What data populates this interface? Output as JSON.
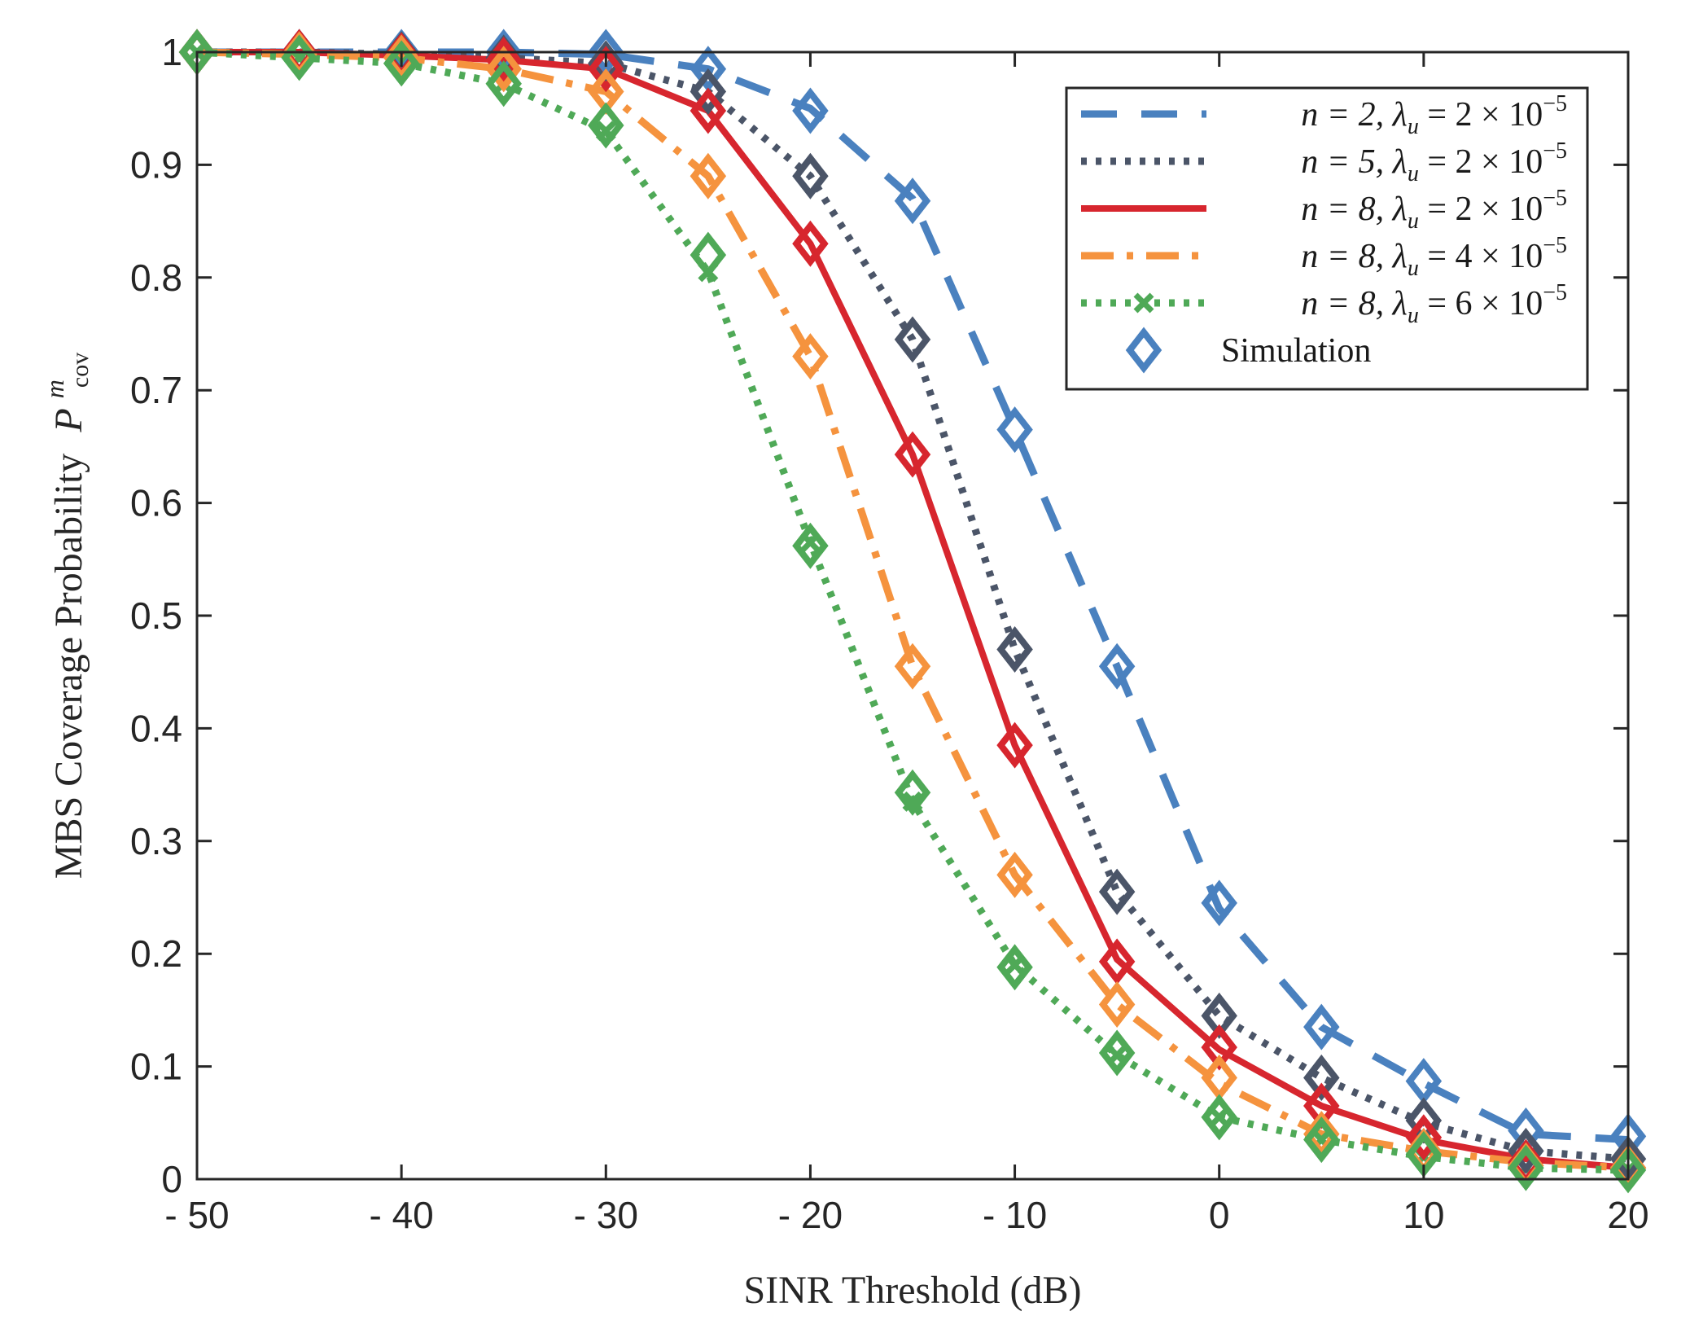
{
  "chart_data": {
    "type": "line",
    "xlabel": "SINR Threshold (dB)",
    "ylabel_text": "MBS Coverage Probability",
    "ylabel_symbol": "P",
    "ylabel_sup": "m",
    "ylabel_sub": "cov",
    "xlim": [
      -50,
      20
    ],
    "ylim": [
      0,
      1
    ],
    "xticks": [
      -50,
      -40,
      -30,
      -20,
      -10,
      0,
      10,
      20
    ],
    "xtick_labels": [
      "- 50",
      "- 40",
      "- 30",
      "- 20",
      "- 10",
      "0",
      "10",
      "20"
    ],
    "yticks": [
      0,
      0.1,
      0.2,
      0.3,
      0.4,
      0.5,
      0.6,
      0.7,
      0.8,
      0.9,
      1
    ],
    "ytick_labels": [
      "0",
      "0.1",
      "0.2",
      "0.3",
      "0.4",
      "0.5",
      "0.6",
      "0.7",
      "0.8",
      "0.9",
      "1"
    ],
    "legend_position": "top-right",
    "x": [
      -50,
      -45,
      -40,
      -35,
      -30,
      -25,
      -20,
      -15,
      -10,
      -5,
      0,
      5,
      10,
      15,
      20
    ],
    "series": [
      {
        "name": "n = 2, λ_u = 2 × 10^-5",
        "legend_prefix": "n = 2, λ",
        "legend_sub": "u",
        "legend_mid": " = 2 × 10",
        "legend_sup": "−5",
        "color": "#4a81bf",
        "style": "dashed",
        "values": [
          1.0,
          1.0,
          1.0,
          1.0,
          0.998,
          0.985,
          0.95,
          0.87,
          0.665,
          0.455,
          0.24,
          0.135,
          0.085,
          0.04,
          0.035
        ],
        "sim": [
          1.0,
          1.0,
          1.0,
          1.0,
          1.0,
          0.985,
          0.948,
          0.868,
          0.665,
          0.455,
          0.245,
          0.135,
          0.087,
          0.043,
          0.038
        ]
      },
      {
        "name": "n = 5, λ_u = 2 × 10^-5",
        "legend_prefix": "n = 5, λ",
        "legend_sub": "u",
        "legend_mid": " = 2 × 10",
        "legend_sup": "−5",
        "color": "#4b5568",
        "style": "dotted",
        "values": [
          1.0,
          1.0,
          0.998,
          0.995,
          0.99,
          0.965,
          0.89,
          0.745,
          0.47,
          0.255,
          0.145,
          0.09,
          0.05,
          0.025,
          0.018
        ],
        "sim": [
          1.0,
          1.0,
          0.998,
          0.995,
          0.99,
          0.965,
          0.89,
          0.745,
          0.47,
          0.255,
          0.145,
          0.09,
          0.052,
          0.025,
          0.018
        ]
      },
      {
        "name": "n = 8, λ_u = 2 × 10^-5",
        "legend_prefix": "n = 8, λ",
        "legend_sub": "u",
        "legend_mid": " = 2 × 10",
        "legend_sup": "−5",
        "color": "#d7262e",
        "style": "solid",
        "values": [
          1.0,
          1.0,
          0.997,
          0.993,
          0.985,
          0.948,
          0.83,
          0.643,
          0.385,
          0.195,
          0.115,
          0.065,
          0.035,
          0.018,
          0.01
        ],
        "sim": [
          1.0,
          1.0,
          0.997,
          0.993,
          0.985,
          0.948,
          0.83,
          0.643,
          0.385,
          0.193,
          0.117,
          0.065,
          0.037,
          0.015,
          0.01
        ]
      },
      {
        "name": "n = 8, λ_u = 4 × 10^-5",
        "legend_prefix": "n = 8, λ",
        "legend_sub": "u",
        "legend_mid": " = 4 × 10",
        "legend_sup": "−5",
        "color": "#f5933e",
        "style": "dashdot",
        "values": [
          1.0,
          0.998,
          0.995,
          0.985,
          0.965,
          0.89,
          0.73,
          0.455,
          0.27,
          0.155,
          0.085,
          0.04,
          0.025,
          0.015,
          0.01
        ],
        "sim": [
          1.0,
          0.998,
          0.995,
          0.985,
          0.965,
          0.89,
          0.73,
          0.455,
          0.27,
          0.155,
          0.09,
          0.04,
          0.025,
          0.012,
          0.01
        ]
      },
      {
        "name": "n = 8, λ_u = 6 × 10^-5",
        "legend_prefix": "n = 8, λ",
        "legend_sub": "u",
        "legend_mid": " = 6 × 10",
        "legend_sup": "−5",
        "color": "#4fa957",
        "style": "dotted-x",
        "values": [
          1.0,
          0.995,
          0.99,
          0.972,
          0.93,
          0.805,
          0.565,
          0.335,
          0.19,
          0.11,
          0.055,
          0.035,
          0.02,
          0.01,
          0.008
        ],
        "sim": [
          1.0,
          0.995,
          0.99,
          0.972,
          0.935,
          0.82,
          0.562,
          0.343,
          0.188,
          0.112,
          0.055,
          0.035,
          0.022,
          0.01,
          0.008
        ]
      }
    ],
    "simulation_label": "Simulation"
  }
}
